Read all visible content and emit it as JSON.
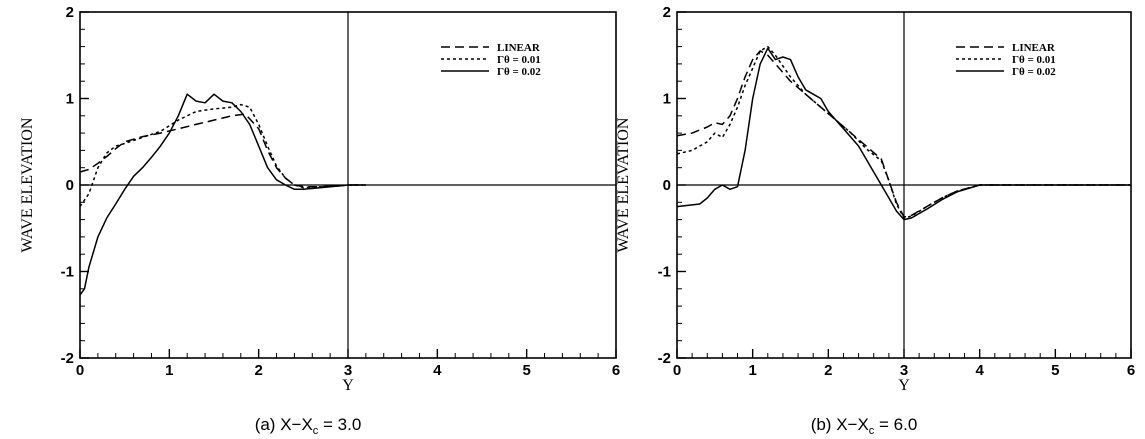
{
  "chart_data": [
    {
      "type": "line",
      "caption": {
        "prefix": "(a) X−X",
        "subscript": "c",
        "suffix": " = 3.0"
      },
      "xlabel": "Y",
      "ylabel": "WAVE ELEVATION",
      "xlim": [
        0,
        6
      ],
      "ylim": [
        -2,
        2
      ],
      "xticks": [
        "0",
        "1",
        "2",
        "3",
        "4",
        "5",
        "6"
      ],
      "yticks": [
        "-2",
        "-1",
        "0",
        "1",
        "2"
      ],
      "reference_lines": {
        "y": 0,
        "x": 3
      },
      "legend_position": "top-right",
      "series": [
        {
          "name": "LINEAR",
          "dash": "dashed",
          "x": [
            0,
            0.1,
            0.2,
            0.3,
            0.4,
            0.5,
            0.7,
            0.9,
            1.1,
            1.3,
            1.5,
            1.7,
            1.85,
            2.0,
            2.1,
            2.2,
            2.3,
            2.4,
            2.5,
            2.7,
            2.9,
            3.0,
            3.2
          ],
          "y": [
            0.15,
            0.18,
            0.25,
            0.33,
            0.42,
            0.5,
            0.56,
            0.6,
            0.65,
            0.7,
            0.75,
            0.8,
            0.82,
            0.65,
            0.4,
            0.2,
            0.08,
            0.0,
            -0.02,
            -0.02,
            -0.01,
            0.0,
            0.0
          ]
        },
        {
          "name": "Γθ = 0.01",
          "dash": "dotted",
          "x": [
            0,
            0.1,
            0.2,
            0.3,
            0.4,
            0.5,
            0.7,
            0.9,
            1.1,
            1.3,
            1.5,
            1.7,
            1.8,
            1.9,
            2.0,
            2.1,
            2.2,
            2.3,
            2.4,
            2.5,
            2.7,
            2.9,
            3.0,
            3.2
          ],
          "y": [
            -0.25,
            -0.1,
            0.2,
            0.37,
            0.45,
            0.48,
            0.55,
            0.62,
            0.75,
            0.85,
            0.88,
            0.9,
            0.93,
            0.9,
            0.7,
            0.45,
            0.22,
            0.08,
            0.0,
            -0.03,
            -0.02,
            -0.01,
            0.0,
            0.0
          ]
        },
        {
          "name": "Γθ = 0.02",
          "dash": "solid",
          "x": [
            0,
            0.05,
            0.1,
            0.2,
            0.3,
            0.4,
            0.5,
            0.6,
            0.7,
            0.8,
            0.9,
            1.0,
            1.1,
            1.2,
            1.3,
            1.4,
            1.5,
            1.6,
            1.7,
            1.8,
            1.9,
            2.0,
            2.1,
            2.2,
            2.3,
            2.4,
            2.5,
            2.7,
            2.9,
            3.0,
            3.2
          ],
          "y": [
            -1.27,
            -1.2,
            -0.95,
            -0.6,
            -0.38,
            -0.22,
            -0.05,
            0.1,
            0.2,
            0.32,
            0.45,
            0.6,
            0.8,
            1.05,
            0.97,
            0.95,
            1.05,
            0.97,
            0.95,
            0.85,
            0.7,
            0.45,
            0.2,
            0.06,
            0.0,
            -0.05,
            -0.05,
            -0.03,
            -0.01,
            0.0,
            0.0
          ]
        }
      ]
    },
    {
      "type": "line",
      "caption": {
        "prefix": "(b) X−X",
        "subscript": "c",
        "suffix": " = 6.0"
      },
      "xlabel": "Y",
      "ylabel": "WAVE ELEVATION",
      "xlim": [
        0,
        6
      ],
      "ylim": [
        -2,
        2
      ],
      "xticks": [
        "0",
        "1",
        "2",
        "3",
        "4",
        "5",
        "6"
      ],
      "yticks": [
        "-2",
        "-1",
        "0",
        "1",
        "2"
      ],
      "reference_lines": {
        "y": 0,
        "x": 3
      },
      "legend_position": "top-right",
      "series": [
        {
          "name": "LINEAR",
          "dash": "dashed",
          "x": [
            0,
            0.2,
            0.4,
            0.5,
            0.6,
            0.7,
            0.8,
            0.9,
            1.0,
            1.1,
            1.2,
            1.3,
            1.5,
            1.7,
            1.9,
            2.1,
            2.3,
            2.5,
            2.7,
            2.8,
            2.9,
            3.0,
            3.1,
            3.3,
            3.5,
            3.7,
            4.0,
            4.3,
            6.0
          ],
          "y": [
            0.57,
            0.6,
            0.67,
            0.72,
            0.7,
            0.8,
            1.0,
            1.25,
            1.45,
            1.55,
            1.5,
            1.4,
            1.2,
            1.05,
            0.9,
            0.75,
            0.6,
            0.45,
            0.3,
            0.05,
            -0.2,
            -0.37,
            -0.35,
            -0.25,
            -0.15,
            -0.07,
            0.0,
            0.0,
            0.0
          ]
        },
        {
          "name": "Γθ = 0.01",
          "dash": "dotted",
          "x": [
            0,
            0.2,
            0.4,
            0.5,
            0.6,
            0.7,
            0.8,
            0.9,
            1.0,
            1.1,
            1.2,
            1.3,
            1.5,
            1.7,
            1.9,
            2.1,
            2.3,
            2.5,
            2.7,
            2.8,
            2.9,
            3.0,
            3.1,
            3.3,
            3.5,
            3.7,
            4.0,
            4.3,
            6.0
          ],
          "y": [
            0.36,
            0.4,
            0.5,
            0.6,
            0.55,
            0.7,
            0.9,
            1.15,
            1.35,
            1.55,
            1.6,
            1.5,
            1.25,
            1.05,
            0.9,
            0.75,
            0.6,
            0.42,
            0.28,
            0.05,
            -0.22,
            -0.38,
            -0.36,
            -0.25,
            -0.15,
            -0.07,
            0.0,
            0.0,
            0.0
          ]
        },
        {
          "name": "Γθ = 0.02",
          "dash": "solid",
          "x": [
            0,
            0.2,
            0.3,
            0.4,
            0.5,
            0.6,
            0.7,
            0.8,
            0.9,
            1.0,
            1.1,
            1.2,
            1.3,
            1.4,
            1.5,
            1.6,
            1.7,
            1.8,
            1.9,
            2.0,
            2.1,
            2.2,
            2.3,
            2.4,
            2.5,
            2.6,
            2.7,
            2.8,
            2.9,
            3.0,
            3.1,
            3.3,
            3.5,
            3.7,
            4.0,
            4.3,
            6.0
          ],
          "y": [
            -0.25,
            -0.23,
            -0.22,
            -0.15,
            -0.05,
            0.0,
            -0.05,
            -0.02,
            0.4,
            1.0,
            1.4,
            1.58,
            1.45,
            1.48,
            1.45,
            1.25,
            1.1,
            1.05,
            1.0,
            0.85,
            0.75,
            0.65,
            0.55,
            0.45,
            0.3,
            0.15,
            0.0,
            -0.15,
            -0.3,
            -0.4,
            -0.38,
            -0.28,
            -0.17,
            -0.08,
            0.0,
            0.0,
            0.0
          ]
        }
      ]
    }
  ]
}
